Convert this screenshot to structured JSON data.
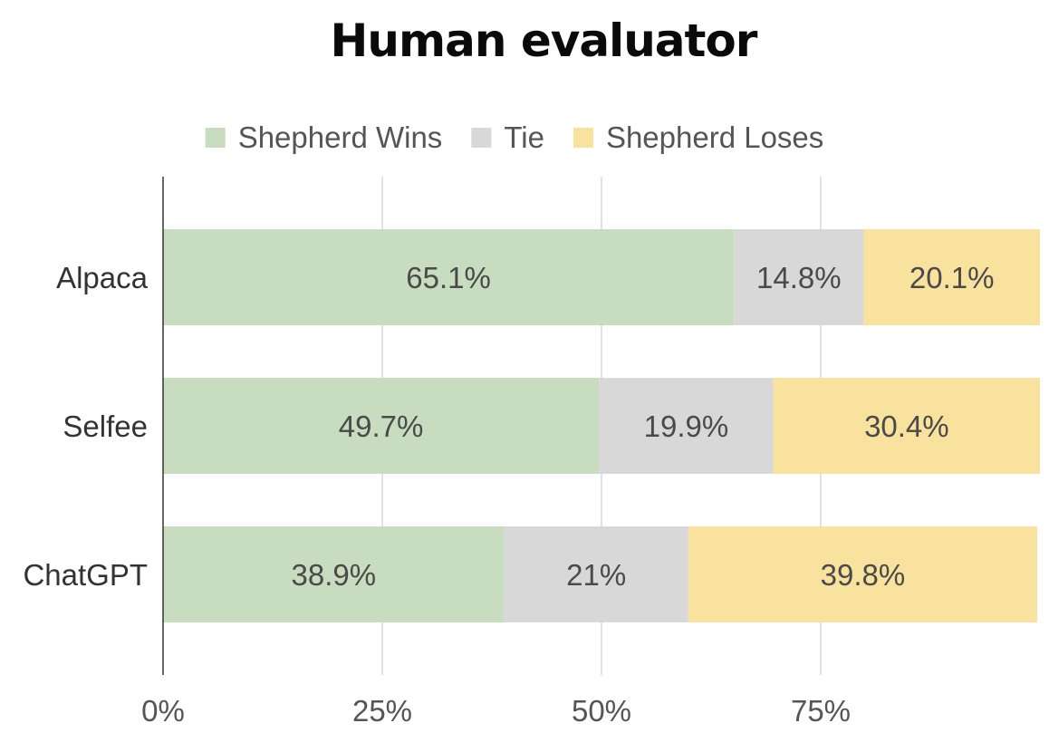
{
  "chart_data": {
    "type": "bar",
    "orientation": "horizontal",
    "stacked": true,
    "title": "Human evaluator",
    "categories": [
      "Alpaca",
      "Selfee",
      "ChatGPT"
    ],
    "series": [
      {
        "name": "Shepherd Wins",
        "values": [
          65.1,
          49.7,
          38.9
        ],
        "labels": [
          "65.1%",
          "49.7%",
          "38.9%"
        ],
        "color": "#c8dcbf"
      },
      {
        "name": "Tie",
        "values": [
          14.8,
          19.9,
          21
        ],
        "labels": [
          "14.8%",
          "19.9%",
          "21%"
        ],
        "color": "#d8d8d8"
      },
      {
        "name": "Shepherd Loses",
        "values": [
          20.1,
          30.4,
          39.8
        ],
        "labels": [
          "20.1%",
          "30.4%",
          "39.8%"
        ],
        "color": "#f8e29e"
      }
    ],
    "xlim": [
      0,
      100
    ],
    "xticks": [
      "0%",
      "25%",
      "50%",
      "75%"
    ],
    "xtick_values": [
      0,
      25,
      50,
      75
    ],
    "grid": true,
    "legend_position": "top"
  }
}
